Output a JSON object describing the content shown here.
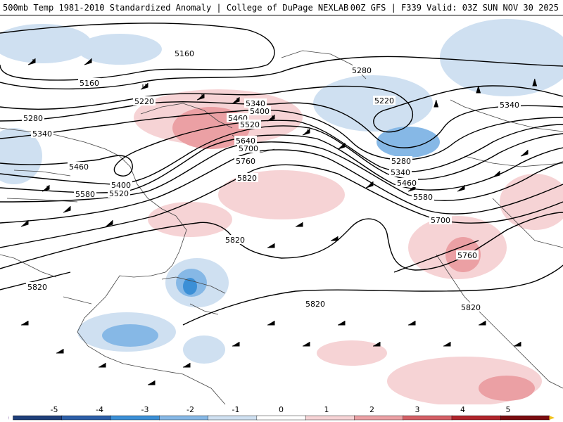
{
  "header": {
    "title": "500mb Temp 1981-2010 Standardized Anomaly | College of DuPage NEXLAB",
    "run_info": "00Z GFS | F339 Valid: 03Z SUN NOV 30 2025"
  },
  "map": {
    "variable": "500mb geopotential height contours with wind barbs",
    "contour_labels": [
      {
        "id": "c5160a",
        "text": "5160"
      },
      {
        "id": "c5160b",
        "text": "5160"
      },
      {
        "id": "c5220a",
        "text": "5220"
      },
      {
        "id": "c5220b",
        "text": "5220"
      },
      {
        "id": "c5280a",
        "text": "5280"
      },
      {
        "id": "c5280b",
        "text": "5280"
      },
      {
        "id": "c5280c",
        "text": "5280"
      },
      {
        "id": "c5340a",
        "text": "5340"
      },
      {
        "id": "c5340b",
        "text": "5340"
      },
      {
        "id": "c5340c",
        "text": "5340"
      },
      {
        "id": "c5340d",
        "text": "5340"
      },
      {
        "id": "c5400a",
        "text": "5400"
      },
      {
        "id": "c5400b",
        "text": "5400"
      },
      {
        "id": "c5460a",
        "text": "5460"
      },
      {
        "id": "c5460b",
        "text": "5460"
      },
      {
        "id": "c5460c",
        "text": "5460"
      },
      {
        "id": "c5520a",
        "text": "5520"
      },
      {
        "id": "c5520b",
        "text": "5520"
      },
      {
        "id": "c5580a",
        "text": "5580"
      },
      {
        "id": "c5580b",
        "text": "5580"
      },
      {
        "id": "c5640",
        "text": "5640"
      },
      {
        "id": "c5700a",
        "text": "5700"
      },
      {
        "id": "c5700b",
        "text": "5700"
      },
      {
        "id": "c5760a",
        "text": "5760"
      },
      {
        "id": "c5760b",
        "text": "5760"
      },
      {
        "id": "c5820a",
        "text": "5820"
      },
      {
        "id": "c5820b",
        "text": "5820"
      },
      {
        "id": "c5820c",
        "text": "5820"
      },
      {
        "id": "c5820d",
        "text": "5820"
      },
      {
        "id": "c5820e",
        "text": "5820"
      }
    ]
  },
  "legend": {
    "ticks": [
      "-5",
      "-4",
      "-3",
      "-2",
      "-1",
      "0",
      "1",
      "2",
      "3",
      "4",
      "5"
    ],
    "colors": [
      "#6a3d9a",
      "#1f3f7a",
      "#2c5fa8",
      "#3b8fd6",
      "#86b8e6",
      "#cfe0f1",
      "#ffffff",
      "#f6d3d5",
      "#eba0a4",
      "#d45f65",
      "#b0242b",
      "#7a0c10",
      "#f2c21b"
    ]
  }
}
